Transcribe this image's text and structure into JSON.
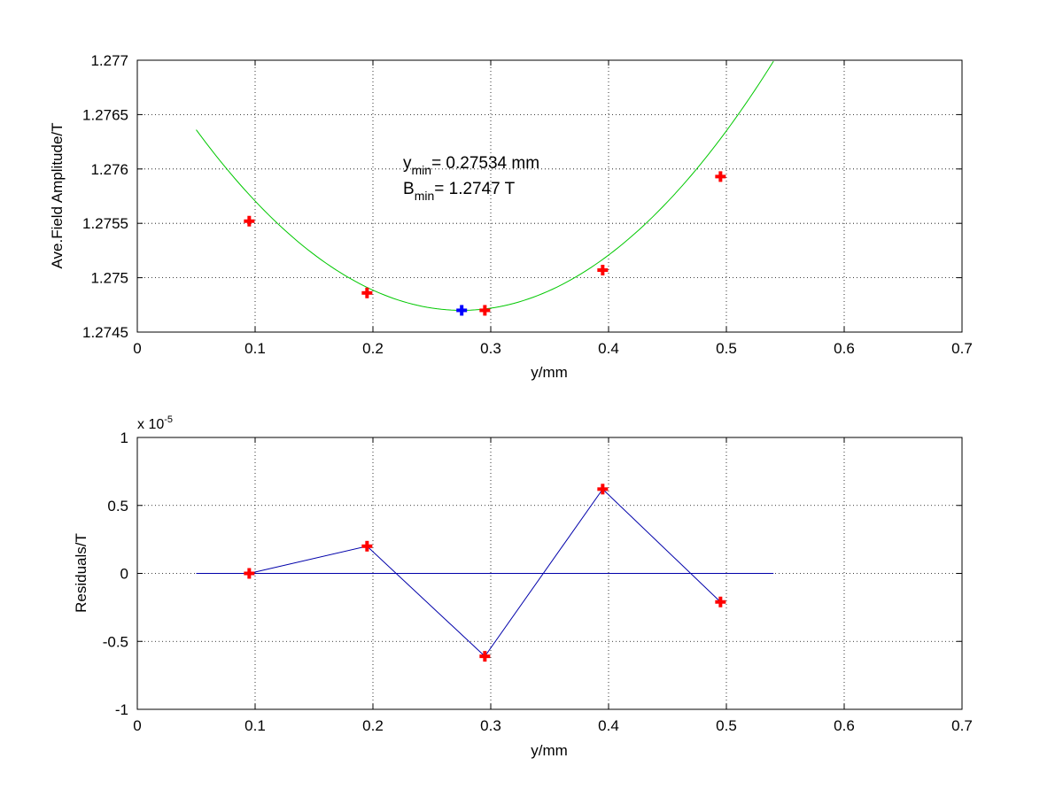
{
  "chart_data": [
    {
      "type": "scatter",
      "xlabel": "y/mm",
      "ylabel": "Ave.Field Amplitude/T",
      "xlim": [
        0,
        0.7
      ],
      "ylim": [
        1.2745,
        1.277
      ],
      "xticks": [
        "0",
        "0.1",
        "0.2",
        "0.3",
        "0.4",
        "0.5",
        "0.6",
        "0.7"
      ],
      "yticks": [
        "1.2745",
        "1.275",
        "1.2755",
        "1.276",
        "1.2765",
        "1.277"
      ],
      "grid": true,
      "fit_curve": {
        "color": "#00c800",
        "x_range": [
          0.05,
          0.54
        ],
        "vertex_x": 0.27534,
        "vertex_y": 1.2747,
        "curvature": 0.0327
      },
      "series": [
        {
          "marker": "plus",
          "color": "#ff0000",
          "x": [
            0.095,
            0.195,
            0.295,
            0.395,
            0.495
          ],
          "y": [
            1.27552,
            1.27486,
            1.2747,
            1.27507,
            1.27593
          ]
        }
      ],
      "minimum_point": {
        "x": 0.27534,
        "y": 1.2747,
        "color": "#0000ff"
      },
      "annotation": {
        "line1_prefix": "y",
        "line1_sub": "min",
        "line1_value": "= 0.27534 mm",
        "line2_prefix": "B",
        "line2_sub": "min",
        "line2_value": "= 1.2747 T"
      }
    },
    {
      "type": "line",
      "xlabel": "y/mm",
      "ylabel": "Residuals/T",
      "xlim": [
        0,
        0.7
      ],
      "ylim": [
        -1,
        1
      ],
      "xticks": [
        "0",
        "0.1",
        "0.2",
        "0.3",
        "0.4",
        "0.5",
        "0.6",
        "0.7"
      ],
      "yticks": [
        "-1",
        "-0.5",
        "0",
        "0.5",
        "1"
      ],
      "exponent_label": "x 10",
      "exponent_power": "-5",
      "grid": true,
      "zero_line": {
        "x_range": [
          0.05,
          0.54
        ],
        "color": "#0000aa"
      },
      "series": [
        {
          "marker": "plus",
          "color": "#ff0000",
          "line_color": "#0000aa",
          "x": [
            0.095,
            0.195,
            0.295,
            0.395,
            0.495
          ],
          "y": [
            0.0,
            0.2,
            -0.61,
            0.62,
            -0.21
          ]
        }
      ]
    }
  ]
}
